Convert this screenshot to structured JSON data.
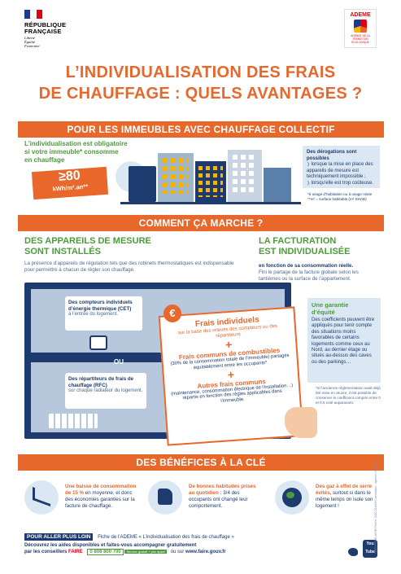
{
  "header": {
    "republic_line1": "RÉPUBLIQUE",
    "republic_line2": "FRANÇAISE",
    "motto1": "Liberté",
    "motto2": "Égalité",
    "motto3": "Fraternité",
    "ademe_name": "ADEME",
    "ademe_sub": "AGENCE DE LA TRANSITION ÉCOLOGIQUE"
  },
  "title": {
    "line1": "L’INDIVIDUALISATION DES FRAIS",
    "line2": "DE CHAUFFAGE : QUELS AVANTAGES ?"
  },
  "section1": {
    "band": "POUR LES IMMEUBLES AVEC CHAUFFAGE COLLECTIF",
    "lead1": "L’individualisation est obligatoire",
    "lead2": "si votre immeuble* consomme",
    "lead3": "en chauffage",
    "threshold": "≥80",
    "unit": "kWh/m².an**",
    "derog_title": "Des dérogations sont possibles",
    "derog_items": [
      "lorsque la mise en place des appareils de mesure est techniquement impossible ;",
      "lorsqu’elle est trop coûteuse."
    ],
    "footnote1": "*à usage d’habitation ou à usage mixte",
    "footnote2": "**m² = surface habitable (m² SHAB)"
  },
  "section2": {
    "band": "COMMENT ÇA MARCHE ?",
    "left_title1": "DES APPAREILS DE MESURE",
    "left_title2": "SONT INSTALLÉS",
    "left_text": "La présence d’appareils de régulation tels que des robinets thermostatiques est indispensable pour permettre à chacun de régler son chauffage.",
    "right_title1": "LA FACTURATION",
    "right_title2": "EST INDIVIDUALISÉE",
    "right_text_bold": "en fonction de sa consommation réelle.",
    "right_text": "Fini le partage de la facture globale selon les tantièmes ou la surface de l’appartement.",
    "cet_title": "Des compteurs individuels d’énergie thermique (CET)",
    "cet_text": "à l’entrée du logement.",
    "ou": "OU",
    "rfc_title": "Des répartiteurs de frais de chauffage (RFC)",
    "rfc_text": "sur chaque radiateur du logement.",
    "euro": "€",
    "bill_title1": "Frais individuels",
    "bill_text1": "sur la base des relevés des compteurs ou des répartiteurs",
    "bill_title2": "Frais communs de combustibles",
    "bill_text2": "(30% de la consommation totale de l’immeuble) partagés équitablement entre les occupants*",
    "bill_title3": "Autres frais communs",
    "bill_text3": "(maintenance, consommation électrique de l’installation…) répartis en fonction des règles applicables dans l’immeuble.",
    "plus": "+",
    "equity_title1": "Une garantie",
    "equity_title2": "d’équité",
    "equity_text": "Des coefficients peuvent être appliqués pour tenir compte des situations moins favorables de certains logements comme ceux au Nord, au dernier étage ou situés au-dessus des caves ou des parkings…",
    "equity_note": "*si l’ancienne réglementation avait déjà été mise en œuvre, il est possible de conserver le coefficient compris entre 0 et 0,5 voté auparavant."
  },
  "section3": {
    "band": "DES BÉNÉFICES À LA CLÉ",
    "b1_title": "Une baisse de consommation de 15 %",
    "b1_text": "en moyenne, et donc des économies garanties sur la facture de chauffage.",
    "b2_title": "De bonnes habitudes prises au quotidien :",
    "b2_text": "3/4 des occupants ont changé leur comportement.",
    "b3_title": "Des gaz à effet de serre évités,",
    "b3_text": "surtout si dans le même temps on isole son logement !"
  },
  "footer": {
    "cta": "POUR ALLER PLUS LOIN",
    "fiche": "Fiche de l’ADEME « L’individualisation des frais de chauffage »",
    "line2": "Découvrez les aides disponibles et faites-vous accompagner gratuitement",
    "line3": "par les conseillers",
    "faire": "FAIRE",
    "phone": "0 808 800 700",
    "phone_note": "Service gratuit + prix appel",
    "site_pre": "ou sur",
    "site": "www.faire.gouv.fr",
    "youtube": "You Tube",
    "side_text": "CLÉS POUR AGIR   Février 2020   011009   Conception : agence Giboulées"
  },
  "colors": {
    "orange": "#e8672b",
    "navy": "#1d3b6e",
    "green": "#4d9b3a",
    "light_blue": "#dbe8f4"
  }
}
